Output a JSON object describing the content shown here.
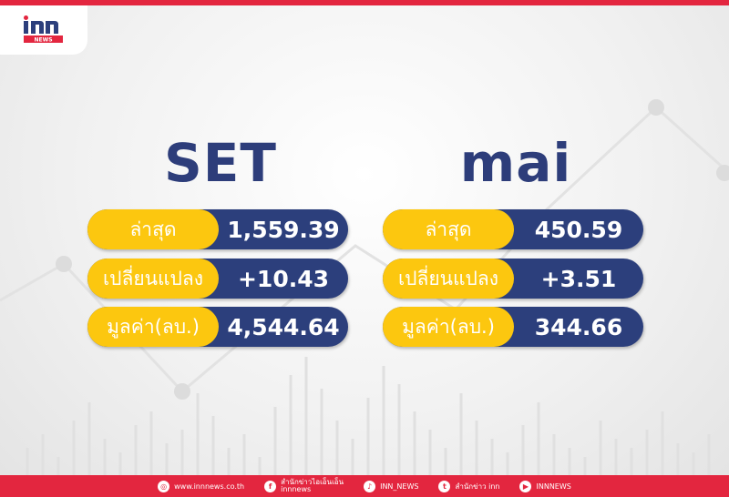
{
  "brand": {
    "logo_text": "inn",
    "logo_sub": "NEWS",
    "accent": "#e3263f",
    "navy": "#2c3f7c",
    "yellow": "#fcc70f"
  },
  "markets": [
    {
      "title": "SET",
      "rows": [
        {
          "label": "ล่าสุด",
          "value": "1,559.39"
        },
        {
          "label": "เปลี่ยนแปลง",
          "value": "+10.43"
        },
        {
          "label": "มูลค่า(ลบ.)",
          "value": "4,544.64"
        }
      ]
    },
    {
      "title": "mai",
      "rows": [
        {
          "label": "ล่าสุด",
          "value": "450.59"
        },
        {
          "label": "เปลี่ยนแปลง",
          "value": "+3.51"
        },
        {
          "label": "มูลค่า(ลบ.)",
          "value": "344.66"
        }
      ]
    }
  ],
  "footer": {
    "website": "www.innnews.co.th",
    "facebook_line1": "สำนักข่าวไอเอ็นเอ็น",
    "facebook_line2": "innnews",
    "tiktok": "INN_NEWS",
    "twitter": "สำนักข่าว inn",
    "youtube": "INNNEWS"
  }
}
